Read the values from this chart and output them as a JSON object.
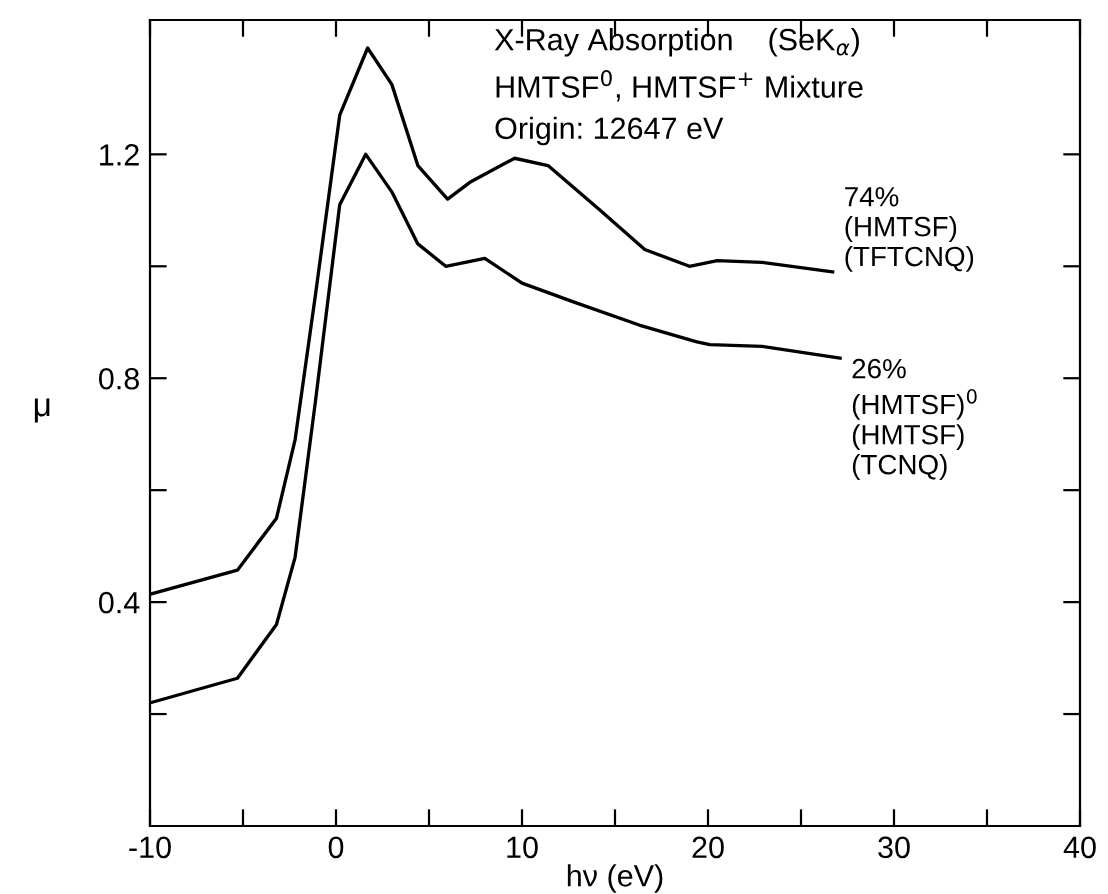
{
  "chart_data": {
    "type": "line",
    "xlabel": "hν (eV)",
    "ylabel": "μ",
    "annotations": [
      "X-Ray Absorption    (SeK$_{α}$)",
      "HMTSF$^{0}$, HMTSF$^{+}$ Mixture",
      "Origin: 12647 eV"
    ],
    "xlim": [
      -10,
      40
    ],
    "xticks": [
      -10,
      {
        "value": -5,
        "label": null
      },
      0,
      {
        "value": 5,
        "label": null
      },
      10,
      {
        "value": 15,
        "label": null
      },
      20,
      {
        "value": 25,
        "label": null
      },
      30,
      {
        "value": 35,
        "label": null
      },
      40
    ],
    "ylim": [
      0,
      1.44
    ],
    "yticks": [
      {
        "value": 0.2,
        "label": null
      },
      0.4,
      {
        "value": 0.6,
        "label": null
      },
      0.8,
      {
        "value": 1.0,
        "label": null
      },
      1.2
    ],
    "grid": false,
    "legend": false,
    "marker": "none",
    "line_style": "solid",
    "series": [
      {
        "name": "74%\n(HMTSF)\n(TFTCNQ)",
        "color": "#000000",
        "x": [
          -10,
          -5.3,
          -3.2,
          -2.2,
          -1.1,
          0.2,
          1.7,
          3.0,
          4.4,
          6.0,
          7.2,
          9.6,
          11.4,
          14.2,
          16.6,
          19.0,
          20.5,
          22.9,
          26.7
        ],
        "values": [
          0.414,
          0.457,
          0.55,
          0.69,
          0.95,
          1.27,
          1.39,
          1.325,
          1.18,
          1.12,
          1.15,
          1.193,
          1.18,
          1.1,
          1.03,
          1.0,
          1.01,
          1.007,
          0.99
        ]
      },
      {
        "name": "26%\n(HMTSF)$^{0}$\n(HMTSF)\n(TCNQ)",
        "color": "#000000",
        "x": [
          -10,
          -5.3,
          -3.2,
          -2.2,
          -1.1,
          0.2,
          1.6,
          3.0,
          4.4,
          5.9,
          8.0,
          10.0,
          12.8,
          16.3,
          19.4,
          20.1,
          22.9,
          27.1
        ],
        "values": [
          0.22,
          0.264,
          0.36,
          0.48,
          0.76,
          1.11,
          1.2,
          1.133,
          1.04,
          1.0,
          1.014,
          0.97,
          0.936,
          0.895,
          0.865,
          0.86,
          0.857,
          0.836
        ]
      }
    ]
  }
}
